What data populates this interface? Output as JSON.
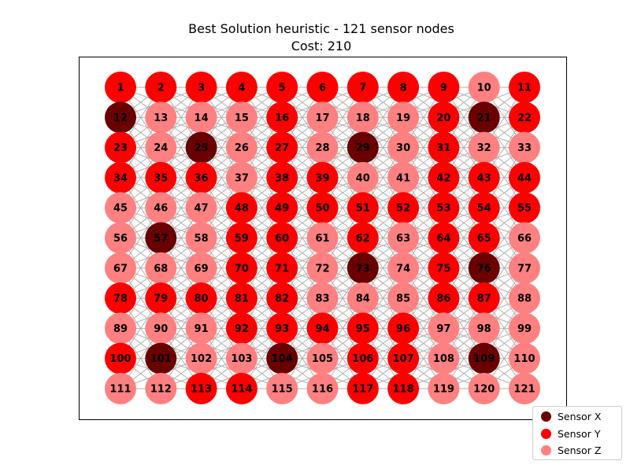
{
  "title": {
    "line1": "Best Solution heuristic - 121 sensor nodes",
    "line2": "Cost: 210"
  },
  "colors": {
    "X": "#6a0000",
    "Y": "#ff0000",
    "Z": "#ff8080",
    "edge": "#b0b0b0",
    "label": "#000000"
  },
  "legend": [
    {
      "key": "X",
      "label": "Sensor X"
    },
    {
      "key": "Y",
      "label": "Sensor Y"
    },
    {
      "key": "Z",
      "label": "Sensor Z"
    }
  ],
  "grid": {
    "rows": 11,
    "cols": 11
  },
  "node_types": [
    "YYYYYYYYYZY",
    "XZZZYZZZYXY",
    "YZXZYZXZYZZ",
    "YYYZYYZZYYY",
    "ZZZYYYYYYYY",
    "ZXZYYZYZYYZ",
    "ZZZYYZXZYXZ",
    "YYYYYZZZYYZ",
    "ZZZYYYYYZZZ",
    "YXZZXZYYZXZ",
    "ZZYYZZYYZZZ"
  ]
}
